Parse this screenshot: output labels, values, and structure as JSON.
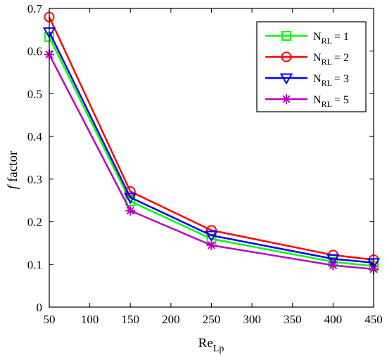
{
  "chart_data": {
    "type": "line",
    "x": [
      50,
      150,
      250,
      400,
      450
    ],
    "xlim": [
      50,
      450
    ],
    "ylim": [
      0,
      0.7
    ],
    "xticks": [
      "50",
      "100",
      "150",
      "200",
      "250",
      "300",
      "350",
      "400",
      "450"
    ],
    "yticks": [
      "0",
      "0.1",
      "0.2",
      "0.3",
      "0.4",
      "0.5",
      "0.6",
      "0.7"
    ],
    "xlabel": {
      "main": "Re",
      "sub": "Lp"
    },
    "ylabel": {
      "italic": "f",
      "rest": "factor"
    },
    "legend_position": "top-right",
    "series": [
      {
        "name": {
          "main": "N",
          "sub": "RL",
          "rest": "= 1"
        },
        "color": "#00ff00",
        "marker": "square",
        "values": [
          0.633,
          0.248,
          0.16,
          0.106,
          0.096
        ]
      },
      {
        "name": {
          "main": "N",
          "sub": "RL",
          "rest": "= 2"
        },
        "color": "#ff0000",
        "marker": "circle",
        "values": [
          0.68,
          0.271,
          0.18,
          0.122,
          0.111
        ]
      },
      {
        "name": {
          "main": "N",
          "sub": "RL",
          "rest": "= 3"
        },
        "color": "#0000ff",
        "marker": "triangle-down",
        "values": [
          0.645,
          0.257,
          0.168,
          0.113,
          0.104
        ]
      },
      {
        "name": {
          "main": "N",
          "sub": "RL",
          "rest": "= 5"
        },
        "color": "#c000c0",
        "marker": "asterisk",
        "values": [
          0.592,
          0.226,
          0.145,
          0.098,
          0.089
        ]
      }
    ]
  }
}
